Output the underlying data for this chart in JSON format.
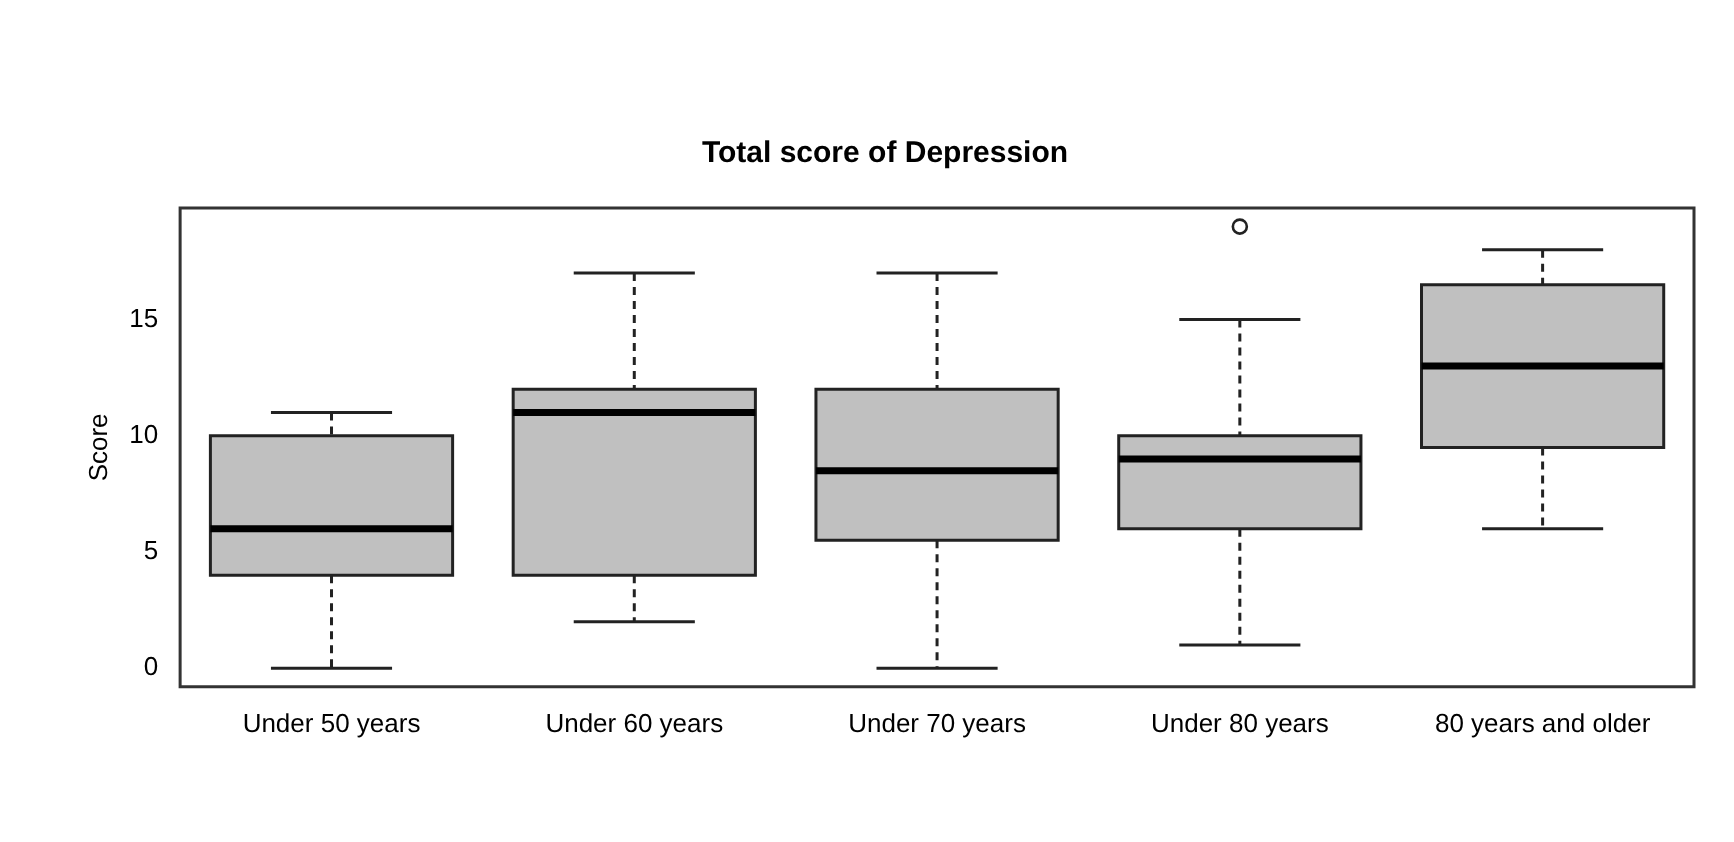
{
  "chart_data": {
    "type": "box",
    "title": "Total score of Depression",
    "ylabel": "Score",
    "categories": [
      "Under 50 years",
      "Under 60 years",
      "Under 70 years",
      "Under 80 years",
      "80 years and older"
    ],
    "color": "#c0c0c0",
    "boxes": [
      {
        "low": 0,
        "q1": 4,
        "median": 6,
        "q3": 10,
        "high": 11
      },
      {
        "low": 2,
        "q1": 4,
        "median": 11,
        "q3": 12,
        "high": 17
      },
      {
        "low": 0,
        "q1": 5.5,
        "median": 8.5,
        "q3": 12,
        "high": 17
      },
      {
        "low": 1,
        "q1": 6,
        "median": 9,
        "q3": 10,
        "high": 15,
        "outliers": [
          19
        ]
      },
      {
        "low": 6,
        "q1": 9.5,
        "median": 13,
        "q3": 16.5,
        "high": 18
      }
    ],
    "ylim": [
      -0.8,
      19.8
    ],
    "yticks": [
      0,
      5,
      10,
      15
    ]
  }
}
